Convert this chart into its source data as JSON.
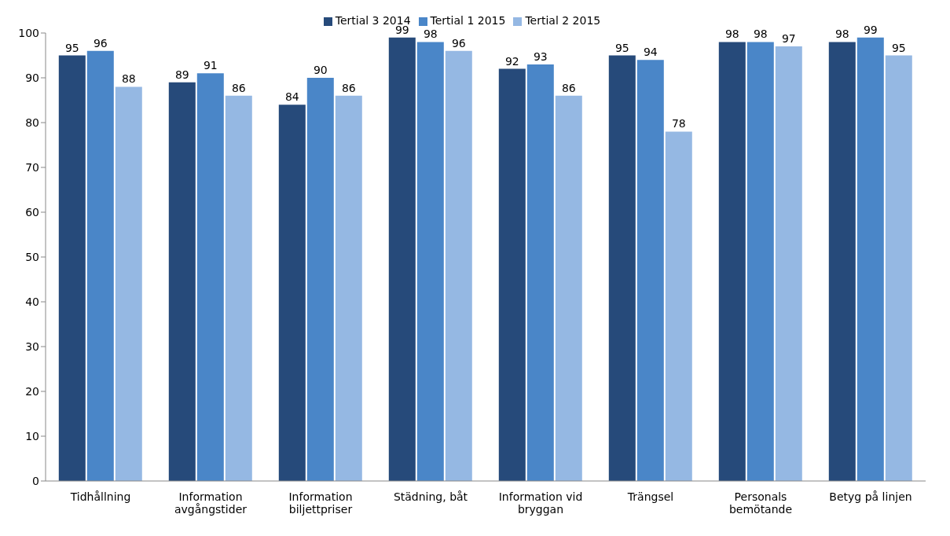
{
  "chart_data": {
    "type": "bar",
    "categories": [
      "Tidhållning",
      "Information avgångstider",
      "Information biljettpriser",
      "Städning, båt",
      "Information vid bryggan",
      "Trängsel",
      "Personals bemötande",
      "Betyg på linjen"
    ],
    "series": [
      {
        "name": "Tertial 3 2014",
        "color": "#264a7a",
        "values": [
          95,
          89,
          84,
          99,
          92,
          95,
          98,
          98
        ]
      },
      {
        "name": "Tertial 1 2015",
        "color": "#4a86c8",
        "values": [
          96,
          91,
          90,
          98,
          93,
          94,
          98,
          99
        ]
      },
      {
        "name": "Tertial 2 2015",
        "color": "#95b8e3",
        "values": [
          88,
          86,
          86,
          96,
          86,
          78,
          97,
          95
        ]
      }
    ],
    "ylim": [
      0,
      100
    ],
    "yticks": [
      0,
      10,
      20,
      30,
      40,
      50,
      60,
      70,
      80,
      90,
      100
    ],
    "grid": false,
    "legend": "top",
    "data_labels": true
  }
}
